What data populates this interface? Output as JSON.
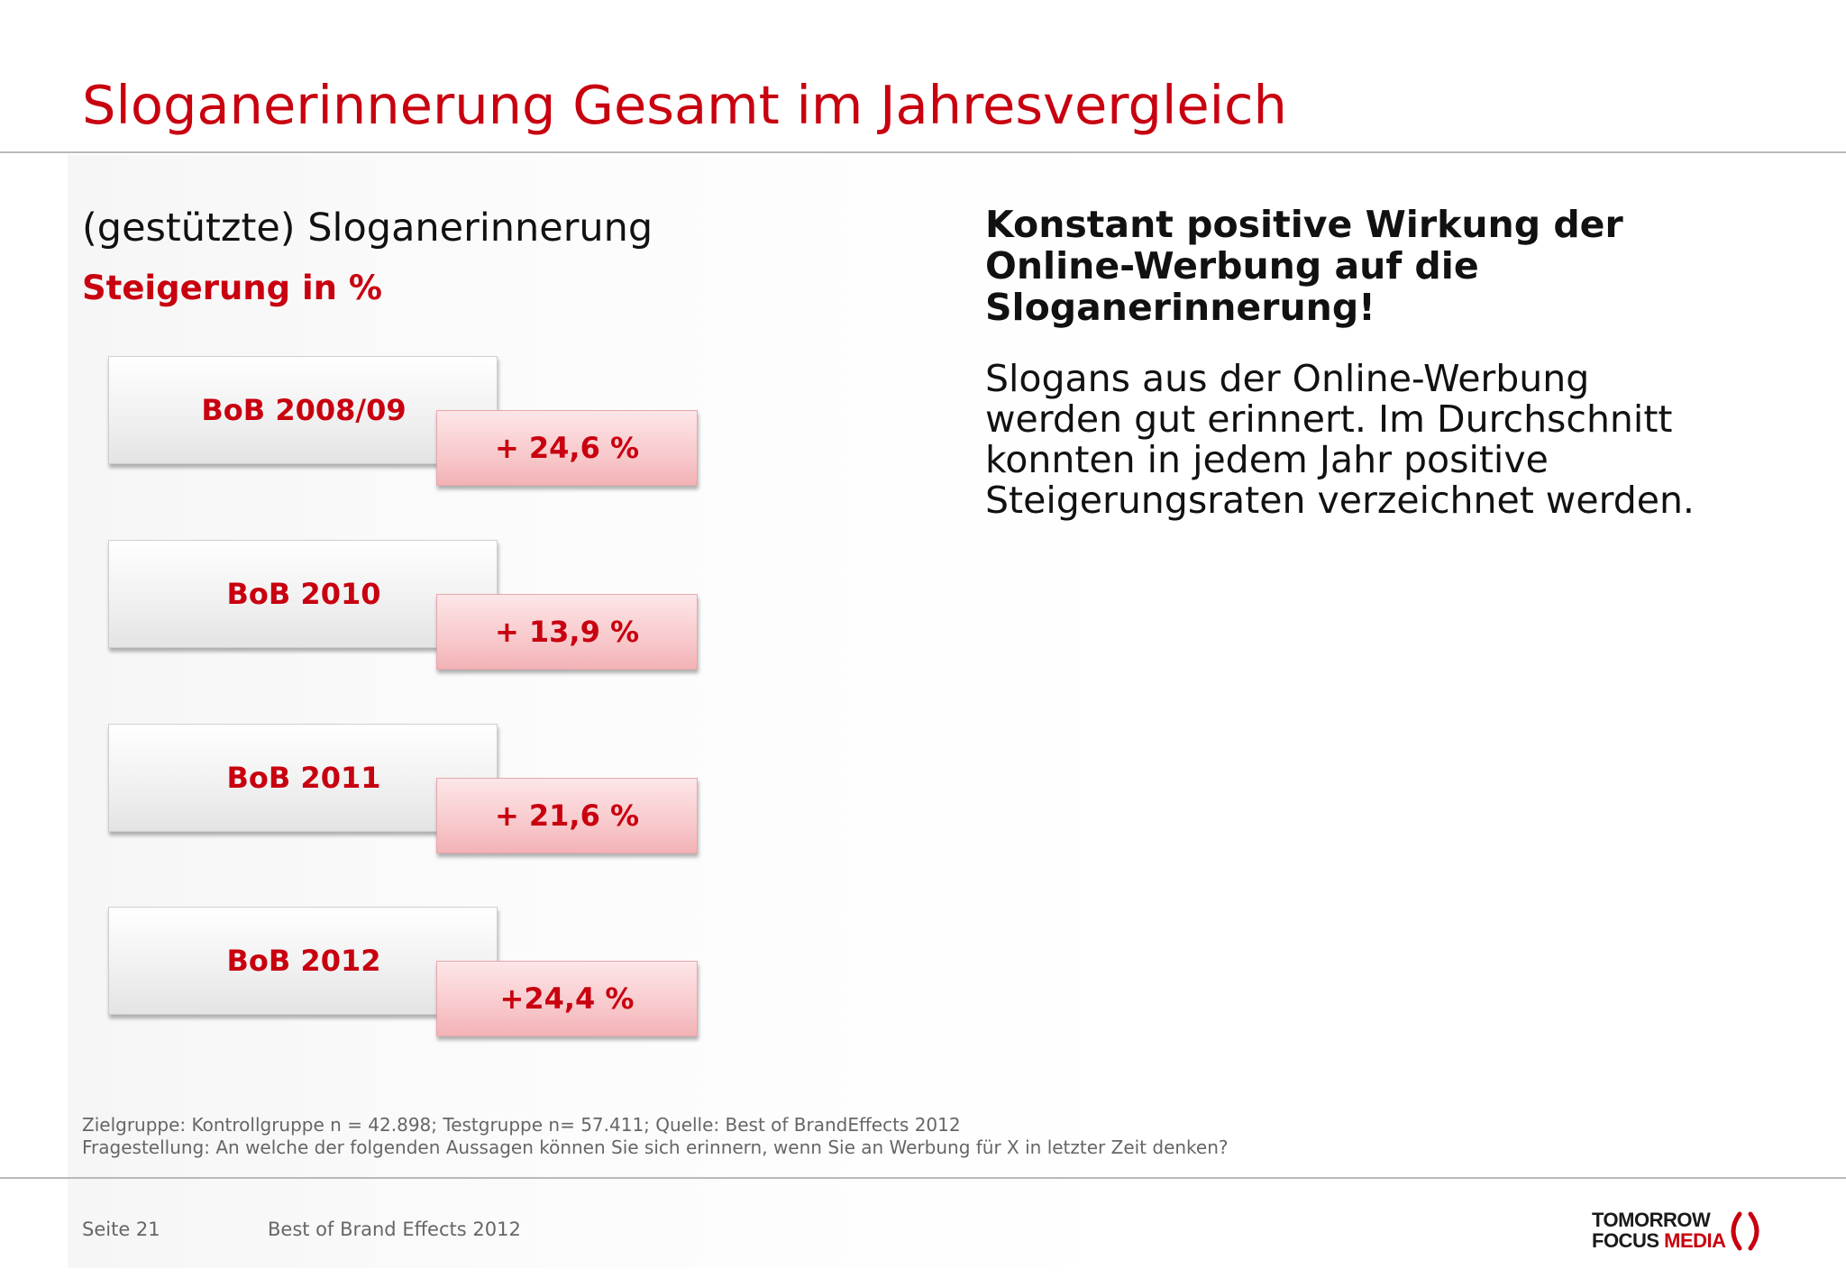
{
  "header": {
    "title": "Sloganerinnerung Gesamt im Jahresvergleich"
  },
  "left": {
    "subtitle": "(gestützte) Sloganerinnerung",
    "subtitle_red": "Steigerung in %",
    "rows": [
      {
        "label": "BoB 2008/09",
        "value": "+ 24,6 %"
      },
      {
        "label": "BoB 2010",
        "value": "+ 13,9 %"
      },
      {
        "label": "BoB 2011",
        "value": "+ 21,6 %"
      },
      {
        "label": "BoB 2012",
        "value": "+24,4 %"
      }
    ]
  },
  "right": {
    "headline_lines": [
      "Konstant positive Wirkung der",
      "Online-Werbung auf die",
      "Sloganerinnerung!"
    ],
    "body_lines": [
      "Slogans aus der Online-Werbung",
      "werden gut erinnert. Im Durchschnitt",
      "konnten in jedem Jahr positive",
      "Steigerungsraten verzeichnet werden."
    ]
  },
  "footnotes": {
    "line1": "Zielgruppe: Kontrollgruppe n = 42.898; Testgruppe n= 57.411; Quelle: Best of BrandEffects 2012",
    "line2": "Fragestellung: An welche der folgenden Aussagen können Sie sich erinnern, wenn Sie an Werbung für X in letzter Zeit denken?"
  },
  "footer": {
    "page": "Seite 21",
    "doc_title": "Best of Brand Effects 2012",
    "logo_line1": "TOMORROW",
    "logo_focus": "FOCUS",
    "logo_media": "MEDIA"
  },
  "colors": {
    "accent_red": "#c8000f",
    "value_box_pink": "#f8c9cc",
    "label_box_gray": "#f1f1f1"
  },
  "icons": {
    "logo_mark": "red-bracket-arc"
  }
}
